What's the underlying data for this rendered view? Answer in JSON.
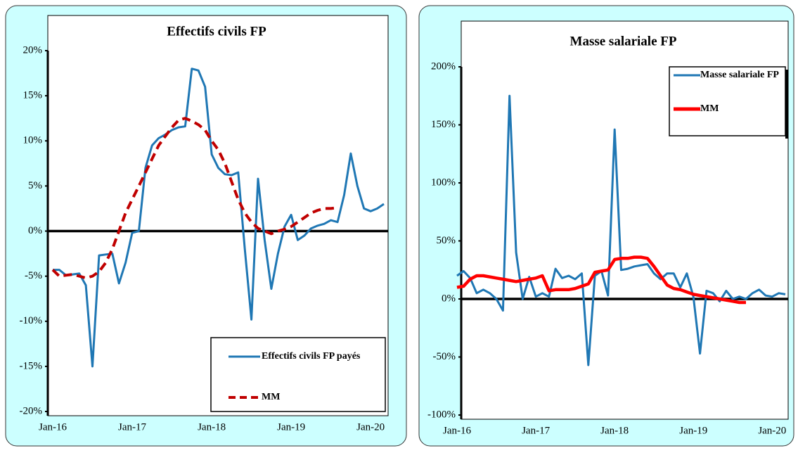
{
  "chart_data": [
    {
      "type": "line",
      "title": "Effectifs civils FP",
      "categories": [
        "Jan-16",
        null,
        null,
        null,
        null,
        null,
        null,
        null,
        null,
        null,
        null,
        null,
        "Jan-17",
        null,
        null,
        null,
        null,
        null,
        null,
        null,
        null,
        null,
        null,
        null,
        "Jan-18",
        null,
        null,
        null,
        null,
        null,
        null,
        null,
        null,
        null,
        null,
        null,
        "Jan-19",
        null,
        null,
        null,
        null,
        null,
        null,
        null,
        null,
        null,
        null,
        null,
        "Jan-20",
        null,
        null
      ],
      "series": [
        {
          "name": "Effectifs civils FP payés",
          "color": "#1f77b4",
          "dashed": false,
          "values": [
            -4.3,
            -4.3,
            -4.9,
            -4.8,
            -4.7,
            -6,
            -15,
            -2.7,
            -2.6,
            -2.5,
            -5.8,
            -3.5,
            -0.2,
            0,
            7,
            9.5,
            10.3,
            10.7,
            11.2,
            11.5,
            11.6,
            18,
            17.8,
            16,
            8.5,
            7,
            6.3,
            6.2,
            6.5,
            -2,
            -9.8,
            5.8,
            -1,
            -6.4,
            -2.5,
            0.5,
            1.8,
            -1,
            -0.5,
            0.3,
            0.6,
            0.8,
            1.2,
            1,
            4,
            8.6,
            5,
            2.5,
            2.2,
            2.5,
            3
          ]
        },
        {
          "name": "MM",
          "color": "#c00000",
          "dashed": true,
          "values": [
            -4.3,
            -5,
            -4.9,
            -4.8,
            -5,
            -5.2,
            -5,
            -4.5,
            -3.5,
            -2,
            0,
            2,
            3.5,
            5,
            6.5,
            8,
            9.5,
            10.5,
            11.5,
            12.3,
            12.5,
            12.2,
            11.8,
            11.2,
            10,
            9,
            7.5,
            5.5,
            3.5,
            2,
            1,
            0.3,
            0,
            -0.3,
            0,
            0.2,
            0.5,
            1,
            1.5,
            2,
            2.3,
            2.5,
            2.5,
            2.6,
            null,
            null,
            null,
            null,
            null,
            null,
            null
          ]
        }
      ],
      "ylim": [
        -20,
        20
      ],
      "yticks": [
        {
          "value": -20,
          "label": "-20%"
        },
        {
          "value": -15,
          "label": "-15%"
        },
        {
          "value": -10,
          "label": "-10%"
        },
        {
          "value": -5,
          "label": "-5%"
        },
        {
          "value": 0,
          "label": "0%"
        },
        {
          "value": 5,
          "label": "5%"
        },
        {
          "value": 10,
          "label": "10%"
        },
        {
          "value": 15,
          "label": "15%"
        },
        {
          "value": 20,
          "label": "20%"
        }
      ],
      "legend": "bottom-right"
    },
    {
      "type": "line",
      "title": "Masse salariale FP",
      "categories": [
        "Jan-16",
        null,
        null,
        null,
        null,
        null,
        null,
        null,
        null,
        null,
        null,
        null,
        "Jan-17",
        null,
        null,
        null,
        null,
        null,
        null,
        null,
        null,
        null,
        null,
        null,
        "Jan-18",
        null,
        null,
        null,
        null,
        null,
        null,
        null,
        null,
        null,
        null,
        null,
        "Jan-19",
        null,
        null,
        null,
        null,
        null,
        null,
        null,
        null,
        null,
        null,
        null,
        "Jan-20",
        null,
        null
      ],
      "series": [
        {
          "name": "Masse salariale FP",
          "color": "#1f77b4",
          "dashed": false,
          "values": [
            20,
            24,
            18,
            5,
            8,
            5,
            0,
            -10,
            175,
            40,
            0,
            19,
            2,
            5,
            2,
            26,
            18,
            20,
            17,
            22,
            -57,
            20,
            24,
            3,
            146,
            25,
            26,
            28,
            29,
            30,
            22,
            17,
            22,
            22,
            10,
            22,
            2,
            -47,
            7,
            5,
            -2,
            7,
            0,
            2,
            0,
            5,
            8,
            3,
            2,
            5,
            4
          ]
        },
        {
          "name": "MM",
          "color": "#ff0000",
          "dashed": false,
          "values": [
            10,
            11,
            17,
            20,
            20,
            19,
            18,
            17,
            16,
            15,
            16,
            17,
            18,
            20,
            7,
            8,
            8,
            8,
            9,
            11,
            13,
            23,
            24,
            25,
            34,
            35,
            35,
            36,
            36,
            35,
            28,
            20,
            12,
            9,
            8,
            6,
            4,
            3,
            2,
            1,
            0,
            -1,
            -2,
            -3,
            -3,
            null,
            null,
            null,
            null,
            null,
            null
          ]
        }
      ],
      "ylim": [
        -100,
        200
      ],
      "yticks": [
        {
          "value": -100,
          "label": "-100%"
        },
        {
          "value": -50,
          "label": "-50%"
        },
        {
          "value": 0,
          "label": "0%"
        },
        {
          "value": 50,
          "label": "50%"
        },
        {
          "value": 100,
          "label": "100%"
        },
        {
          "value": 150,
          "label": "150%"
        },
        {
          "value": 200,
          "label": "200%"
        }
      ],
      "legend": "top-right"
    }
  ]
}
